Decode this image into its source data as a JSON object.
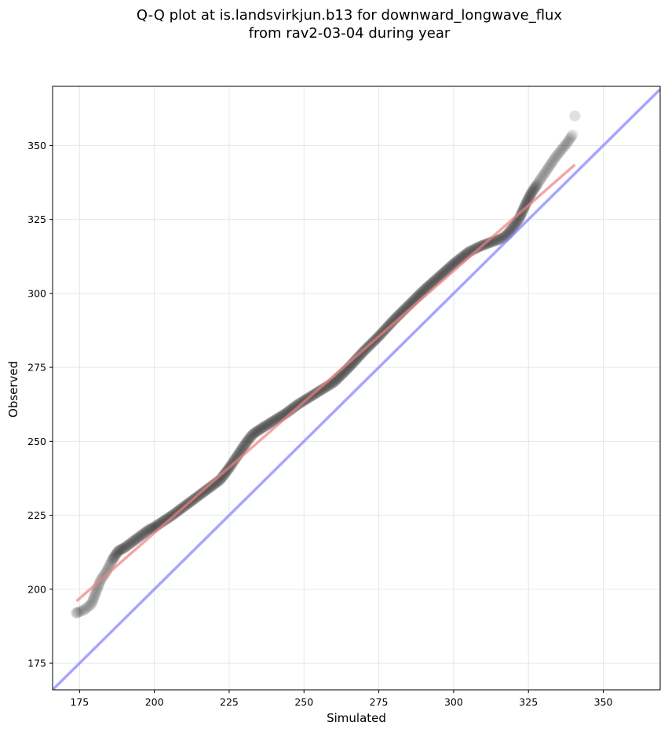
{
  "chart_data": {
    "type": "scatter",
    "title": "Q-Q plot at is.landsvirkjun.b13 for downward_longwave_flux",
    "subtitle": "from rav2-03-04 during year",
    "xlabel": "Simulated",
    "ylabel": "Observed",
    "xlim": [
      166,
      369
    ],
    "ylim": [
      166,
      370
    ],
    "xticks": [
      175,
      200,
      225,
      250,
      275,
      300,
      325,
      350
    ],
    "yticks": [
      175,
      200,
      225,
      250,
      275,
      300,
      325,
      350
    ],
    "grid": true,
    "colors": {
      "points": "#000000",
      "fit_line": "#f08080",
      "identity_line": "#8080ff",
      "grid": "#e6e6e6"
    },
    "quantile_curve": {
      "x": [
        174.0,
        176.5,
        179.0,
        180.5,
        182.0,
        184.0,
        186.0,
        188.0,
        190.0,
        192.0,
        194.0,
        196.0,
        198.0,
        200.0,
        203.0,
        206.0,
        210.0,
        214.0,
        218.0,
        222.0,
        225.0,
        227.0,
        229.0,
        231.0,
        233.0,
        236.0,
        240.0,
        244.0,
        248.0,
        252.0,
        256.0,
        260.0,
        265.0,
        270.0,
        275.0,
        280.0,
        285.0,
        290.0,
        295.0,
        300.0,
        305.0,
        309.0,
        313.0,
        316.0,
        318.0,
        320.0,
        322.0,
        324.0,
        326.0,
        328.0,
        330.0,
        332.0,
        334.0,
        336.0,
        338.0,
        340.0
      ],
      "y": [
        192.0,
        193.0,
        195.0,
        199.0,
        203.0,
        206.0,
        210.0,
        213.0,
        214.0,
        215.5,
        217.0,
        218.5,
        220.0,
        221.0,
        223.0,
        225.0,
        228.0,
        231.0,
        234.0,
        237.0,
        241.0,
        244.0,
        247.0,
        250.0,
        252.5,
        254.5,
        257.0,
        259.5,
        262.5,
        265.0,
        267.5,
        270.0,
        275.0,
        280.5,
        285.5,
        291.0,
        296.0,
        301.0,
        305.5,
        310.0,
        314.0,
        316.0,
        317.5,
        318.5,
        320.0,
        322.5,
        325.5,
        330.0,
        334.0,
        337.0,
        340.0,
        343.0,
        346.0,
        348.5,
        351.0,
        354.0
      ],
      "extremes": [
        [
          174.0,
          192.0
        ],
        [
          340.5,
          360.0
        ]
      ]
    },
    "fit_line": {
      "x": [
        174,
        340.5
      ],
      "y": [
        196,
        343.5
      ]
    },
    "identity_line": {
      "x": [
        166,
        369
      ],
      "y": [
        166,
        369
      ]
    }
  }
}
